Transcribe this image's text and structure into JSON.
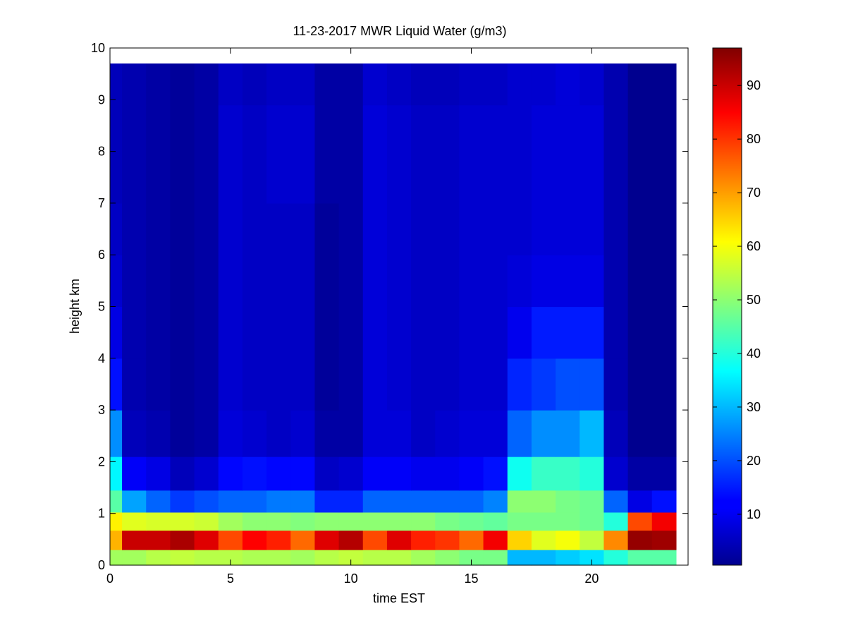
{
  "chart_data": {
    "type": "heatmap",
    "title": "11-23-2017 MWR Liquid Water (g/m3)",
    "xlabel": "time EST",
    "ylabel": "height km",
    "xlim": [
      0,
      24
    ],
    "ylim": [
      0,
      10
    ],
    "x_ticks": [
      0,
      5,
      10,
      15,
      20
    ],
    "y_ticks": [
      0,
      1,
      2,
      3,
      4,
      5,
      6,
      7,
      8,
      9,
      10
    ],
    "colorbar": {
      "colormap": "jet",
      "range": [
        0.5,
        97
      ],
      "ticks": [
        10,
        20,
        30,
        40,
        50,
        60,
        70,
        80,
        90
      ]
    },
    "x_centers": [
      0,
      1,
      2,
      3,
      4,
      5,
      6,
      7,
      8,
      9,
      10,
      11,
      12,
      13,
      14,
      15,
      16,
      17,
      18,
      19,
      20,
      21,
      22,
      23
    ],
    "y_centers": [
      0.1,
      0.5,
      0.85,
      1.2,
      1.7,
      2.5,
      3.5,
      4.5,
      5.5,
      6.5,
      7.5,
      8.5,
      9.3
    ],
    "z": [
      [
        52,
        52,
        54,
        55,
        54,
        54,
        53,
        53,
        52,
        54,
        55,
        54,
        54,
        52,
        50,
        48,
        48,
        30,
        30,
        32,
        34,
        40,
        45,
        45
      ],
      [
        68,
        90,
        90,
        93,
        88,
        78,
        85,
        82,
        75,
        88,
        92,
        78,
        88,
        82,
        80,
        75,
        86,
        65,
        58,
        60,
        55,
        72,
        95,
        94
      ],
      [
        62,
        58,
        57,
        57,
        56,
        52,
        50,
        50,
        49,
        50,
        50,
        50,
        50,
        50,
        48,
        47,
        46,
        48,
        48,
        48,
        47,
        40,
        78,
        86
      ],
      [
        45,
        28,
        22,
        18,
        20,
        22,
        22,
        24,
        24,
        16,
        16,
        22,
        22,
        22,
        22,
        22,
        25,
        50,
        50,
        48,
        47,
        22,
        10,
        14
      ],
      [
        36,
        12,
        10,
        6,
        8,
        13,
        14,
        13,
        13,
        7,
        8,
        12,
        12,
        11,
        11,
        12,
        14,
        38,
        42,
        42,
        40,
        8,
        4,
        4
      ],
      [
        26,
        6,
        5,
        3,
        4,
        9,
        8,
        7,
        8,
        4,
        4,
        9,
        9,
        7,
        8,
        9,
        9,
        22,
        26,
        26,
        30,
        6,
        2,
        2
      ],
      [
        14,
        5,
        4,
        3,
        4,
        8,
        7,
        7,
        7,
        3,
        4,
        9,
        8,
        7,
        7,
        8,
        8,
        16,
        18,
        20,
        20,
        5,
        2,
        2
      ],
      [
        10,
        5,
        4,
        3,
        4,
        8,
        7,
        7,
        7,
        3,
        4,
        9,
        8,
        7,
        7,
        8,
        8,
        11,
        15,
        15,
        15,
        5,
        2,
        2
      ],
      [
        8,
        5,
        4,
        3,
        4,
        8,
        7,
        7,
        7,
        3,
        4,
        9,
        8,
        7,
        7,
        8,
        8,
        9,
        10,
        10,
        10,
        5,
        2,
        2
      ],
      [
        7,
        5,
        4,
        3,
        4,
        8,
        7,
        7,
        7,
        3,
        4,
        9,
        8,
        7,
        7,
        8,
        8,
        8,
        9,
        9,
        9,
        5,
        2,
        2
      ],
      [
        6,
        5,
        4,
        3,
        4,
        8,
        7,
        8,
        8,
        4,
        4,
        9,
        8,
        7,
        7,
        8,
        8,
        8,
        9,
        9,
        9,
        5,
        2,
        2
      ],
      [
        6,
        5,
        4,
        3,
        4,
        8,
        7,
        8,
        8,
        4,
        4,
        9,
        8,
        7,
        7,
        8,
        8,
        8,
        9,
        9,
        9,
        5,
        2,
        2
      ],
      [
        6,
        5,
        4,
        3,
        4,
        7,
        6,
        7,
        7,
        4,
        4,
        8,
        7,
        6,
        6,
        7,
        7,
        8,
        8,
        9,
        8,
        5,
        2,
        2
      ]
    ]
  }
}
